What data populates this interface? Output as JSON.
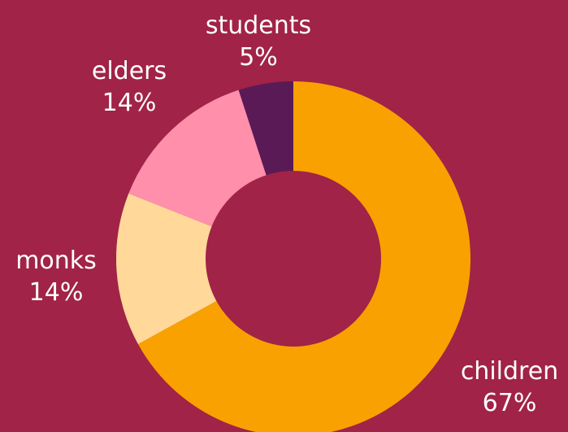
{
  "chart_data": {
    "type": "pie",
    "style": "donut",
    "title": "",
    "categories": [
      "children",
      "monks",
      "elders",
      "students"
    ],
    "values": [
      67,
      14,
      14,
      5
    ],
    "labels": [
      "children\n67%",
      "monks\n14%",
      "elders\n14%",
      "students\n5%"
    ],
    "percent_labels": [
      "67%",
      "14%",
      "14%",
      "5%"
    ],
    "colors": [
      "#f9a100",
      "#ffd89a",
      "#ff8fab",
      "#5a1a55"
    ],
    "start_angle_deg": 0,
    "direction": "clockwise",
    "background_color": "#a12347",
    "label_color": "#ffffff",
    "legend": "none"
  }
}
